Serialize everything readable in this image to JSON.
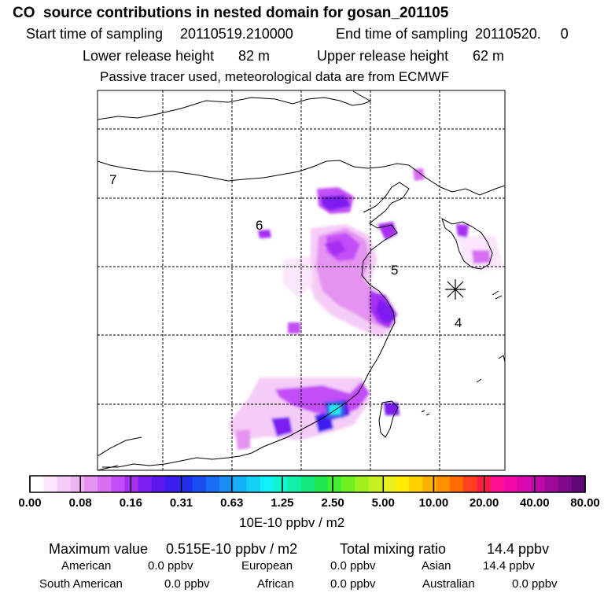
{
  "header": {
    "title": "CO  source contributions in nested domain for gosan_201105",
    "start_label": "Start time of sampling",
    "start_value": "20110519.210000",
    "end_label": "End time of sampling",
    "end_value": "20110520.     0",
    "lower_label": "Lower release height",
    "lower_value": "82 m",
    "upper_label": "Upper release height",
    "upper_value": "62 m",
    "note": "Passive tracer used, meteorological data are from ECMWF"
  },
  "map": {
    "markers": [
      "7",
      "6",
      "5",
      "4"
    ],
    "receptor_symbol": "asterisk-icon"
  },
  "colorbar": {
    "unit": "10E-10 ppbv / m2",
    "ticks": [
      "0.00",
      "0.08",
      "0.16",
      "0.31",
      "0.63",
      "1.25",
      "2.50",
      "5.00",
      "10.00",
      "20.00",
      "40.00",
      "80.00"
    ],
    "colors": [
      "#ffffff",
      "#fbe6fb",
      "#f5ccf7",
      "#eeb3f3",
      "#e493f0",
      "#d86ef2",
      "#c34ef7",
      "#a62ef2",
      "#7b1df0",
      "#5a18ef",
      "#3a1cf0",
      "#2030ea",
      "#1a4df0",
      "#1a6cf2",
      "#1a8df4",
      "#14b0f5",
      "#14d0f7",
      "#0ff0f7",
      "#10f5d0",
      "#12f0a8",
      "#14e880",
      "#20e850",
      "#40f030",
      "#70f020",
      "#a0f020",
      "#c8f020",
      "#e8f020",
      "#ffee00",
      "#ffd000",
      "#ffb000",
      "#ff9000",
      "#ff6a00",
      "#ff4020",
      "#ff2040",
      "#ff1090",
      "#f008a8",
      "#d808b0",
      "#c008a8",
      "#a0089a",
      "#80088a",
      "#60087a"
    ]
  },
  "summary": {
    "max_label": "Maximum value",
    "max_value": "0.515E-10 ppbv / m2",
    "total_label": "Total mixing ratio",
    "total_value": "14.4 ppbv",
    "regions": [
      {
        "name": "American",
        "value": "0.0 ppbv"
      },
      {
        "name": "European",
        "value": "0.0 ppbv"
      },
      {
        "name": "Asian",
        "value": "14.4 ppbv"
      },
      {
        "name": "South American",
        "value": "0.0 ppbv"
      },
      {
        "name": "African",
        "value": "0.0 ppbv"
      },
      {
        "name": "Australian",
        "value": "0.0 ppbv"
      }
    ]
  }
}
